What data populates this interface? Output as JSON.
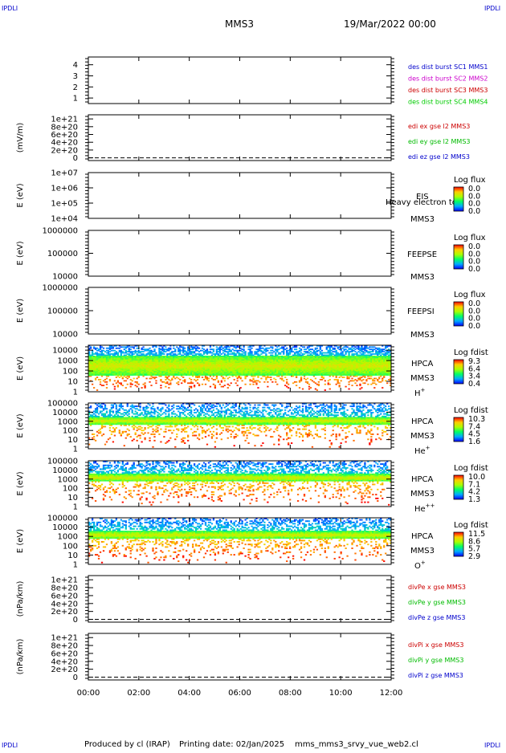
{
  "corner_marks": {
    "top_left": "IPDLI",
    "top_right": "IPDLI",
    "bottom_left": "IPDLI",
    "bottom_right": "IPDLI"
  },
  "header": {
    "spacecraft": "MMS3",
    "datetime": "19/Mar/2022 00:00"
  },
  "footer": {
    "produced_by": "Produced by cl (IRAP)",
    "printing_date": "Printing date: 02/Jan/2025",
    "filename": "mms_mms3_srvy_vue_web2.cl"
  },
  "colors": {
    "mms1": "#0000cc",
    "mms2": "#cc00cc",
    "mms3": "#cc0000",
    "mms4": "#00cc00",
    "x": "#cc0000",
    "y": "#00bb00",
    "z": "#0000cc"
  },
  "chart_data": {
    "type": "heatmap",
    "x_label": "",
    "x_ticks": [
      "00:00",
      "02:00",
      "04:00",
      "06:00",
      "08:00",
      "10:00",
      "12:00"
    ],
    "x_range_hours": [
      0,
      12
    ],
    "panels": [
      {
        "id": "des-dist",
        "type": "line",
        "ylabel": "",
        "yticks": [
          "1",
          "2",
          "3",
          "4"
        ],
        "dashed_zero": false,
        "legend": [
          "des dist burst SC1 MMS1",
          "des dist burst SC2 MMS2",
          "des dist burst SC3 MMS3",
          "des dist burst SC4 MMS4"
        ],
        "legend_colors": [
          "#0000cc",
          "#cc00cc",
          "#cc0000",
          "#00cc00"
        ],
        "series": []
      },
      {
        "id": "edi",
        "type": "line",
        "ylabel": "(mV/m)",
        "yticks": [
          "0",
          "2e+20",
          "4e+20",
          "6e+20",
          "8e+20",
          "1e+21"
        ],
        "dashed_zero": true,
        "legend": [
          "edi ex gse l2 MMS3",
          "edi ey gse l2 MMS3",
          "edi ez gse l2 MMS3"
        ],
        "legend_colors": [
          "#cc0000",
          "#00bb00",
          "#0000cc"
        ],
        "series": []
      },
      {
        "id": "eis",
        "type": "spectrogram",
        "ylabel": "E (eV)",
        "yticks": [
          "1e+04",
          "1e+05",
          "1e+06",
          "1e+07"
        ],
        "instrument": [
          "EIS",
          "MMS3"
        ],
        "colorbar_title": "Log flux",
        "colorbar_ticks": [
          "0.0",
          "0.0",
          "0.0",
          "0.0"
        ],
        "overlay_note": "Heavy electron to",
        "data": "none"
      },
      {
        "id": "feepse",
        "type": "spectrogram",
        "ylabel": "E (eV)",
        "yticks": [
          "10000",
          "100000",
          "1000000"
        ],
        "instrument": [
          "FEEPSE",
          "MMS3"
        ],
        "colorbar_title": "Log flux",
        "colorbar_ticks": [
          "0.0",
          "0.0",
          "0.0",
          "0.0"
        ],
        "data": "none"
      },
      {
        "id": "feepsi",
        "type": "spectrogram",
        "ylabel": "E (eV)",
        "yticks": [
          "10000",
          "100000",
          "1000000"
        ],
        "instrument": [
          "FEEPSI",
          "MMS3"
        ],
        "colorbar_title": "Log flux",
        "colorbar_ticks": [
          "0.0",
          "0.0",
          "0.0",
          "0.0"
        ],
        "data": "none"
      },
      {
        "id": "hpca-h",
        "type": "spectrogram",
        "ylabel": "E (eV)",
        "yticks": [
          "1",
          "10",
          "100",
          "1000",
          "10000"
        ],
        "instrument": [
          "HPCA",
          "MMS3"
        ],
        "species": "H",
        "species_sup": "+",
        "colorbar_title": "Log fdist",
        "colorbar_ticks": [
          "9.3",
          "6.4",
          "3.4",
          "0.4"
        ],
        "data": "dense",
        "e_range": [
          1,
          30000
        ]
      },
      {
        "id": "hpca-he",
        "type": "spectrogram",
        "ylabel": "E (eV)",
        "yticks": [
          "1",
          "10",
          "100",
          "1000",
          "10000",
          "100000"
        ],
        "instrument": [
          "HPCA",
          "MMS3"
        ],
        "species": "He",
        "species_sup": "+",
        "colorbar_title": "Log fdist",
        "colorbar_ticks": [
          "10.3",
          "7.4",
          "4.5",
          "1.6"
        ],
        "data": "medium",
        "e_range": [
          1,
          100000
        ]
      },
      {
        "id": "hpca-hepp",
        "type": "spectrogram",
        "ylabel": "E (eV)",
        "yticks": [
          "1",
          "10",
          "100",
          "1000",
          "10000",
          "100000"
        ],
        "instrument": [
          "HPCA",
          "MMS3"
        ],
        "species": "He",
        "species_sup": "++",
        "colorbar_title": "Log fdist",
        "colorbar_ticks": [
          "10.0",
          "7.1",
          "4.2",
          "1.3"
        ],
        "data": "medium",
        "e_range": [
          1,
          100000
        ]
      },
      {
        "id": "hpca-o",
        "type": "spectrogram",
        "ylabel": "E (eV)",
        "yticks": [
          "1",
          "10",
          "100",
          "1000",
          "10000",
          "100000"
        ],
        "instrument": [
          "HPCA",
          "MMS3"
        ],
        "species": "O",
        "species_sup": "+",
        "colorbar_title": "Log fdist",
        "colorbar_ticks": [
          "11.5",
          "8.6",
          "5.7",
          "2.9"
        ],
        "data": "medium",
        "e_range": [
          1,
          100000
        ]
      },
      {
        "id": "divpe",
        "type": "line",
        "ylabel": "(nPa/km)",
        "yticks": [
          "0",
          "2e+20",
          "4e+20",
          "6e+20",
          "8e+20",
          "1e+21"
        ],
        "dashed_zero": true,
        "legend": [
          "divPe x gse MMS3",
          "divPe y gse MMS3",
          "divPe z gse MMS3"
        ],
        "legend_colors": [
          "#cc0000",
          "#00bb00",
          "#0000cc"
        ],
        "series": []
      },
      {
        "id": "divpi",
        "type": "line",
        "ylabel": "(nPa/km)",
        "yticks": [
          "0",
          "2e+20",
          "4e+20",
          "6e+20",
          "8e+20",
          "1e+21"
        ],
        "dashed_zero": true,
        "legend": [
          "divPi x gse MMS3",
          "divPi y gse MMS3",
          "divPi z gse MMS3"
        ],
        "legend_colors": [
          "#cc0000",
          "#00bb00",
          "#0000cc"
        ],
        "series": []
      }
    ]
  }
}
